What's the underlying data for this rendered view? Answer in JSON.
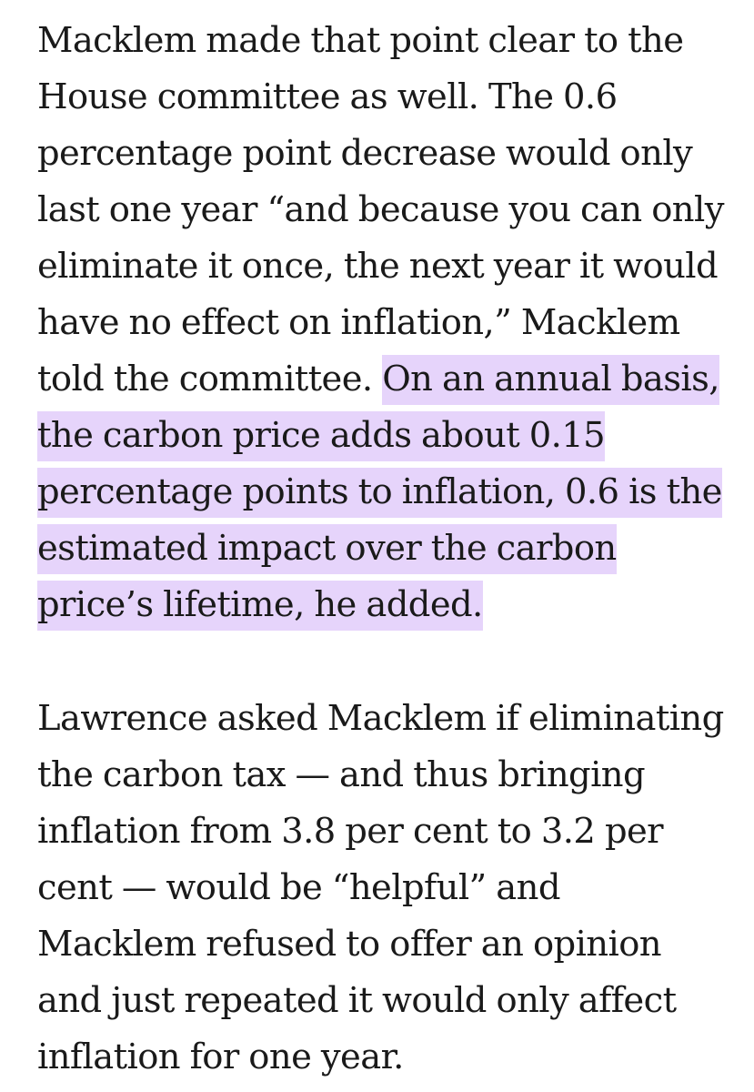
{
  "article": {
    "paragraphs": [
      {
        "lines": [
          {
            "text": "Macklem made that point clear to the"
          },
          {
            "text": "House committee as well. The 0.6"
          },
          {
            "text": "percentage point decrease would only"
          },
          {
            "text": "last one year “and because you can only"
          },
          {
            "text": "eliminate it once, the next year it would"
          },
          {
            "text": "have no effect on inflation,” Macklem"
          },
          {
            "text": "told the committee. ",
            "highlight": "On an annual basis,"
          },
          {
            "text": "",
            "highlight": "the carbon price adds about 0.15"
          },
          {
            "text": "",
            "highlight": "percentage points to inflation, 0.6 is the"
          },
          {
            "text": "",
            "highlight": "estimated impact over the carbon"
          },
          {
            "text": "",
            "highlight": "price’s lifetime, he added."
          }
        ]
      },
      {
        "lines": [
          {
            "text": "Lawrence asked Macklem if eliminating"
          },
          {
            "text": "the carbon tax — and thus bringing"
          },
          {
            "text": "inflation from 3.8 per cent to 3.2 per"
          },
          {
            "text": "cent — would be “helpful” and"
          },
          {
            "text": "Macklem refused to offer an opinion"
          },
          {
            "text": "and just repeated it would only affect"
          },
          {
            "text": "inflation for one year."
          }
        ]
      }
    ]
  },
  "colors": {
    "text": "#1a1a1a",
    "highlight": "#e6d4fb",
    "background": "#ffffff"
  }
}
